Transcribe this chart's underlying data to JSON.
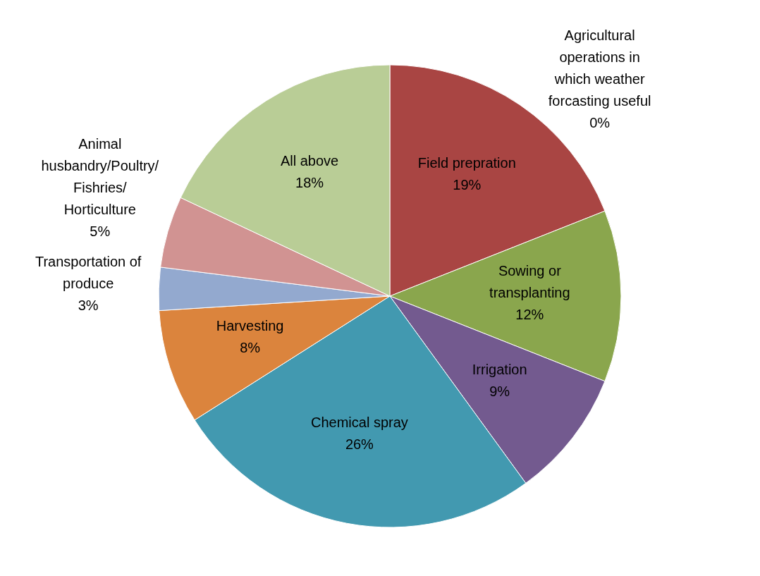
{
  "chart_data": {
    "type": "pie",
    "categories": [
      "Agricultural operations in which weather forcasting useful",
      "Field prepration",
      "Sowing or transplanting",
      "Irrigation",
      "Chemical spray",
      "Harvesting",
      "Transportation of produce",
      "Animal husbandry/Poultry/Fishries/Horticulture",
      "All above"
    ],
    "values": [
      0,
      19,
      12,
      9,
      26,
      8,
      3,
      5,
      18
    ],
    "value_labels": [
      "0%",
      "19%",
      "12%",
      "9%",
      "26%",
      "8%",
      "3%",
      "5%",
      "18%"
    ],
    "colors": [
      "#4572a7",
      "#a94543",
      "#8aa64d",
      "#735a8f",
      "#4299b0",
      "#db843d",
      "#93a9cf",
      "#d19392",
      "#b9cd96"
    ]
  }
}
